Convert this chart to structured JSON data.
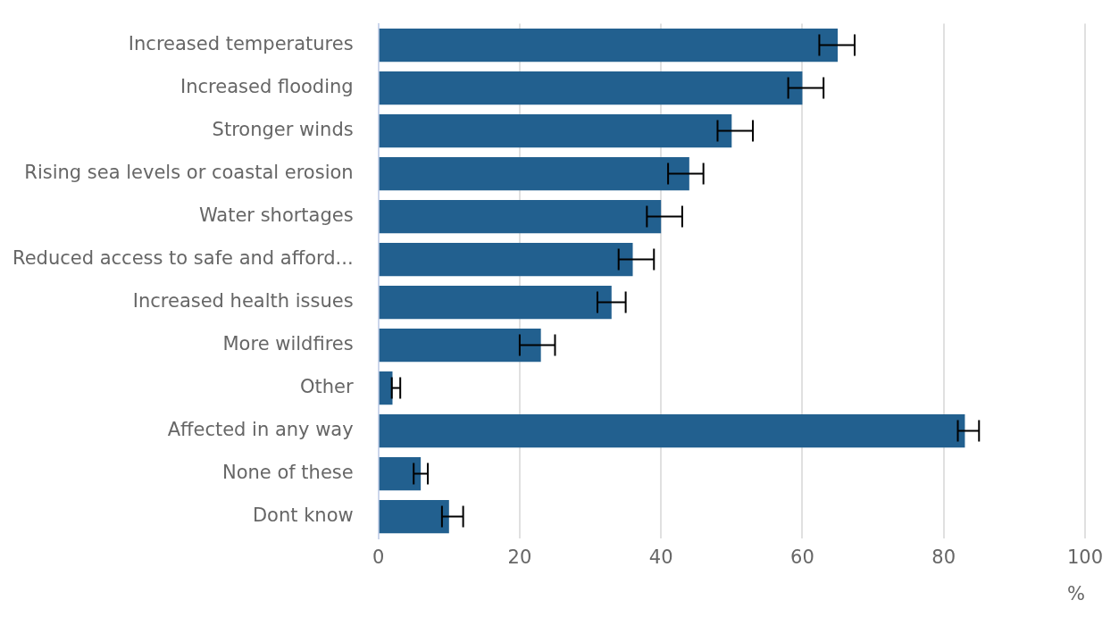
{
  "chart_data": {
    "type": "bar",
    "orientation": "horizontal",
    "xlabel": "%",
    "categories": [
      "Increased temperatures",
      "Increased flooding",
      "Stronger winds",
      "Rising sea levels or coastal erosion",
      "Water shortages",
      "Reduced access to safe and afford...",
      "Increased health issues",
      "More wildfires",
      "Other",
      "Affected in any way",
      "None of these",
      "Dont know"
    ],
    "values": [
      65,
      60,
      50,
      44,
      40,
      36,
      33,
      23,
      2,
      83,
      6,
      10
    ],
    "errors": [
      [
        62.4,
        67.4
      ],
      [
        58,
        63
      ],
      [
        48,
        53
      ],
      [
        41,
        46
      ],
      [
        38,
        43
      ],
      [
        34,
        39
      ],
      [
        31,
        35
      ],
      [
        20,
        25
      ],
      [
        1.9,
        3.1
      ],
      [
        82,
        85
      ],
      [
        5,
        7
      ],
      [
        9,
        12
      ]
    ],
    "color": "#22608f",
    "xlim": [
      0,
      100
    ],
    "xticks": [
      0,
      20,
      40,
      60,
      80,
      100
    ],
    "grid": "x",
    "legend": false
  }
}
